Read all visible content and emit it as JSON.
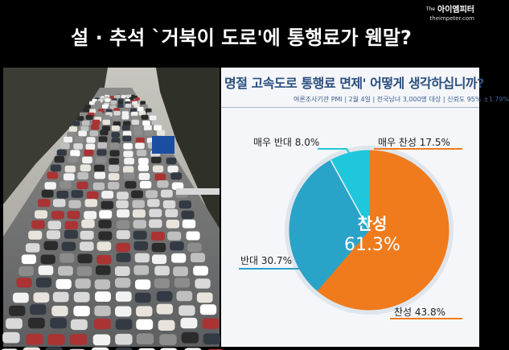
{
  "header": {
    "brand_prefix": "The",
    "brand_name": "아이엠피터",
    "brand_url": "theimpeter.com",
    "headline": "설 · 추석 `거북이 도로'에 통행료가 웬말?"
  },
  "photo": {
    "subject": "congested-highway-photo",
    "colors": {
      "sky": "#b8b6ae",
      "road": "#6f6f70",
      "trees": "#3b3d35"
    }
  },
  "chart_data": {
    "type": "pie",
    "title": "명절 고속도로 통행료 면제' 어떻게 생각하십니까?",
    "subtitle": "여론조사기관 PMI | 2월 4일 | 전국남녀 3,000명 대상 | 신뢰도 95% ±1.79%",
    "slices": [
      {
        "name": "매우 찬성",
        "value": 17.5,
        "color": "#ef7b1c"
      },
      {
        "name": "찬성",
        "value": 43.8,
        "color": "#ef7b1c"
      },
      {
        "name": "반대",
        "value": 30.7,
        "color": "#2aa3c9"
      },
      {
        "name": "매우 반대",
        "value": 8.0,
        "color": "#1fc7dc"
      }
    ],
    "labels": {
      "very_agree": "매우 찬성 17.5%",
      "agree": "찬성 43.8%",
      "oppose": "반대 30.7%",
      "very_oppose": "매우 반대 8.0%",
      "center_word": "찬성",
      "center_value": "61.3%"
    },
    "colors": {
      "agree": "#ef7b1c",
      "oppose": "#2aa3c9",
      "very_oppose": "#1fc7dc",
      "title": "#2b4e7e"
    }
  }
}
